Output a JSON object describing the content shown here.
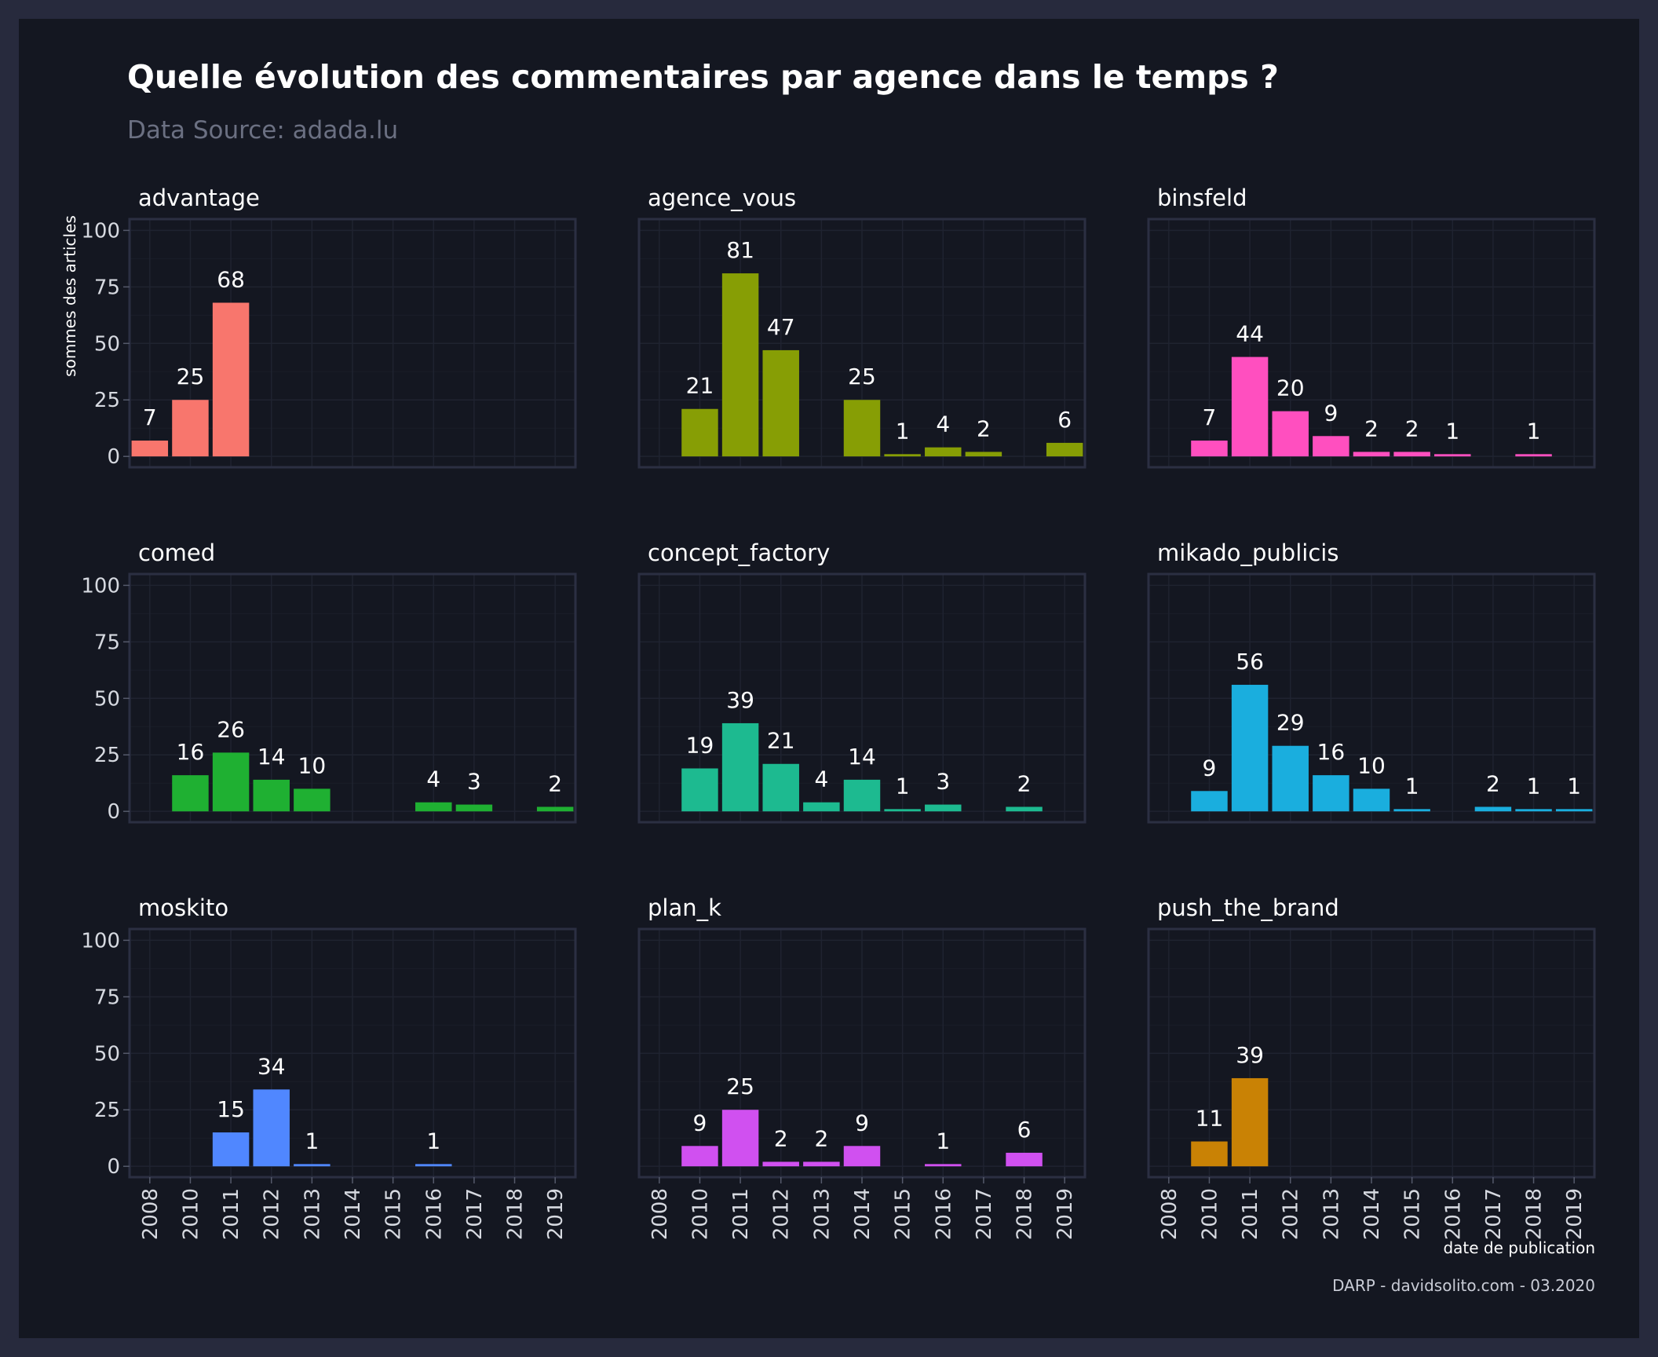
{
  "chart_data": {
    "type": "bar",
    "title": "Quelle évolution des commentaires par agence dans le temps ?",
    "subtitle": "Data Source: adada.lu",
    "xlabel": "date de publication",
    "ylabel": "sommes des articles",
    "caption": "DARP - davidsolito.com - 03.2020",
    "categories": [
      "2008",
      "2010",
      "2011",
      "2012",
      "2013",
      "2014",
      "2015",
      "2016",
      "2017",
      "2018",
      "2019"
    ],
    "ylim": [
      0,
      100
    ],
    "yticks": [
      0,
      25,
      50,
      75,
      100
    ],
    "grid": true,
    "legend": "none",
    "facets": [
      {
        "name": "advantage",
        "color": "#f8766d",
        "values": [
          7,
          25,
          68,
          null,
          null,
          null,
          null,
          null,
          null,
          null,
          null
        ]
      },
      {
        "name": "agence_vous",
        "color": "#879e05",
        "values": [
          null,
          21,
          81,
          47,
          null,
          25,
          1,
          4,
          2,
          null,
          6
        ]
      },
      {
        "name": "binsfeld",
        "color": "#ff4fbf",
        "values": [
          null,
          7,
          44,
          20,
          9,
          2,
          2,
          1,
          null,
          1,
          null
        ]
      },
      {
        "name": "comed",
        "color": "#1fb032",
        "values": [
          null,
          16,
          26,
          14,
          10,
          null,
          null,
          4,
          3,
          null,
          2
        ]
      },
      {
        "name": "concept_factory",
        "color": "#1dba90",
        "values": [
          null,
          19,
          39,
          21,
          4,
          14,
          1,
          3,
          null,
          2,
          null
        ]
      },
      {
        "name": "mikado_publicis",
        "color": "#1aaede",
        "values": [
          null,
          9,
          56,
          29,
          16,
          10,
          1,
          null,
          2,
          1,
          1
        ]
      },
      {
        "name": "moskito",
        "color": "#5087ff",
        "values": [
          null,
          null,
          15,
          34,
          1,
          null,
          null,
          1,
          null,
          null,
          null
        ]
      },
      {
        "name": "plan_k",
        "color": "#d050f0",
        "values": [
          null,
          9,
          25,
          2,
          2,
          9,
          null,
          1,
          null,
          6,
          null
        ]
      },
      {
        "name": "push_the_brand",
        "color": "#c98205",
        "values": [
          null,
          11,
          39,
          null,
          null,
          null,
          null,
          null,
          null,
          null,
          null
        ]
      }
    ]
  }
}
